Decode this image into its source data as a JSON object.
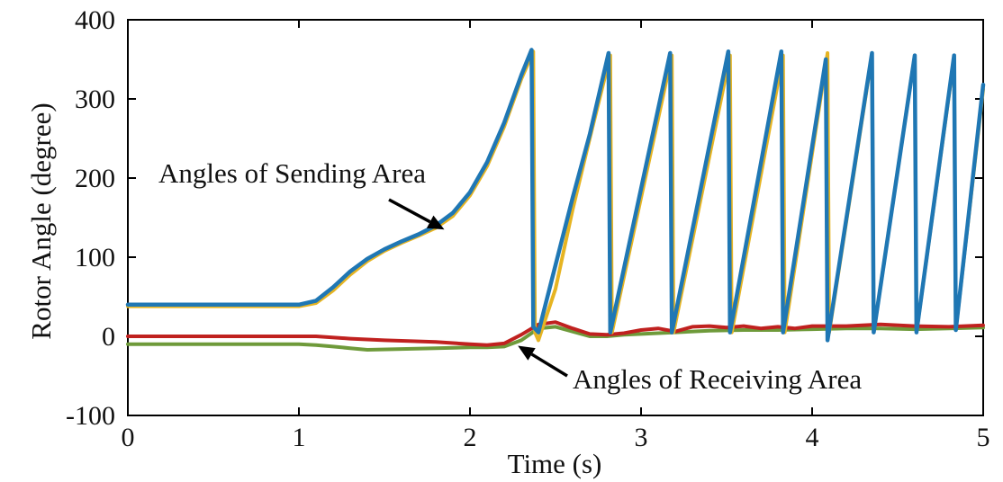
{
  "chart_data": {
    "type": "line",
    "title": "",
    "xlabel": "Time (s)",
    "ylabel": "Rotor Angle (degree)",
    "xlim": [
      0,
      5
    ],
    "ylim": [
      -100,
      400
    ],
    "xticks": [
      0,
      1,
      2,
      3,
      4,
      5
    ],
    "yticks": [
      -100,
      0,
      100,
      200,
      300,
      400
    ],
    "grid": false,
    "legend": "none",
    "annotations": [
      {
        "text": "Angles of Sending Area",
        "points_to": {
          "x": 1.85,
          "y": 135
        }
      },
      {
        "text": "Angles of Receiving Area",
        "points_to": {
          "x": 2.28,
          "y": -12
        }
      }
    ],
    "series": [
      {
        "color": "#E6B422",
        "x": [
          0,
          1.0,
          1.1,
          1.2,
          1.3,
          1.4,
          1.5,
          1.6,
          1.7,
          1.8,
          1.9,
          2.0,
          2.1,
          2.2,
          2.3,
          2.37,
          2.38,
          2.4,
          2.5,
          2.6,
          2.7,
          2.82,
          2.83,
          3.18,
          3.19,
          3.52,
          3.53,
          3.83,
          3.84,
          4.09,
          4.1,
          4.35,
          4.36,
          4.6,
          4.61,
          4.83,
          4.84,
          5.0
        ],
        "y": [
          38,
          38,
          42,
          58,
          78,
          95,
          108,
          118,
          127,
          137,
          152,
          178,
          215,
          265,
          325,
          360,
          5,
          -5,
          60,
          160,
          250,
          355,
          5,
          355,
          5,
          355,
          5,
          355,
          5,
          358,
          5,
          355,
          5,
          355,
          5,
          352,
          8,
          312
        ]
      },
      {
        "color": "#1F77B4",
        "x": [
          0,
          1.0,
          1.1,
          1.2,
          1.3,
          1.4,
          1.5,
          1.6,
          1.7,
          1.8,
          1.9,
          2.0,
          2.1,
          2.2,
          2.3,
          2.36,
          2.37,
          2.4,
          2.5,
          2.6,
          2.7,
          2.81,
          2.82,
          3.17,
          3.18,
          3.51,
          3.52,
          3.82,
          3.83,
          4.08,
          4.09,
          4.35,
          4.36,
          4.6,
          4.61,
          4.83,
          4.84,
          5.0
        ],
        "y": [
          40,
          40,
          45,
          62,
          82,
          98,
          110,
          120,
          129,
          140,
          156,
          182,
          220,
          270,
          330,
          362,
          12,
          5,
          90,
          175,
          255,
          358,
          5,
          358,
          5,
          360,
          5,
          360,
          5,
          350,
          -5,
          358,
          5,
          355,
          5,
          355,
          8,
          318
        ]
      },
      {
        "color": "#C0211F",
        "x": [
          0,
          1.0,
          1.1,
          1.3,
          1.5,
          1.8,
          2.0,
          2.1,
          2.2,
          2.3,
          2.4,
          2.5,
          2.6,
          2.7,
          2.8,
          2.9,
          3.0,
          3.1,
          3.2,
          3.3,
          3.4,
          3.5,
          3.6,
          3.7,
          3.8,
          3.9,
          4.0,
          4.2,
          4.4,
          4.6,
          4.8,
          5.0
        ],
        "y": [
          0,
          0,
          0,
          -3,
          -5,
          -7,
          -10,
          -11,
          -9,
          2,
          15,
          18,
          10,
          3,
          2,
          4,
          8,
          10,
          6,
          12,
          13,
          11,
          13,
          10,
          12,
          10,
          13,
          13,
          15,
          13,
          12,
          14
        ]
      },
      {
        "color": "#6E9A3A",
        "x": [
          0,
          1.0,
          1.1,
          1.2,
          1.3,
          1.4,
          1.6,
          1.8,
          2.0,
          2.1,
          2.2,
          2.3,
          2.4,
          2.5,
          2.6,
          2.7,
          2.8,
          2.9,
          3.0,
          3.2,
          3.4,
          3.6,
          3.8,
          4.0,
          4.2,
          4.4,
          4.6,
          4.8,
          5.0
        ],
        "y": [
          -10,
          -10,
          -11,
          -13,
          -15,
          -17,
          -16,
          -15,
          -14,
          -14,
          -13,
          -5,
          10,
          12,
          6,
          0,
          0,
          2,
          3,
          5,
          7,
          8,
          8,
          9,
          10,
          10,
          9,
          10,
          11
        ]
      }
    ]
  }
}
